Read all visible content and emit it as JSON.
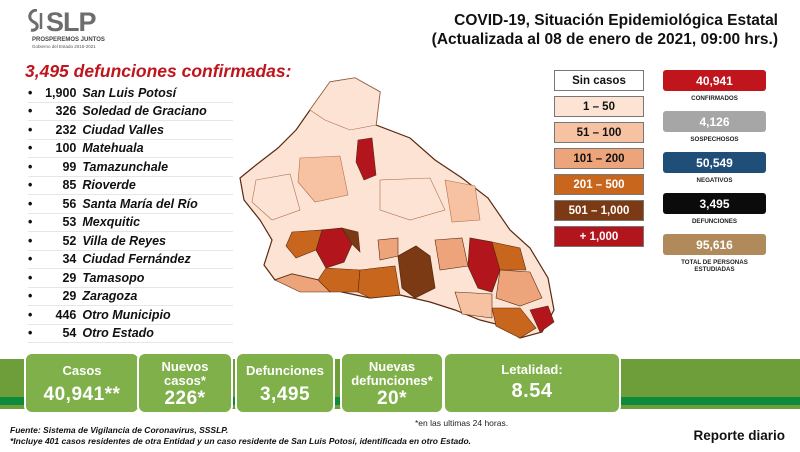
{
  "logo": {
    "name": "SLP",
    "motto": "PROSPEREMOS JUNTOS",
    "government": "Gobierno del Estado 2015-2021"
  },
  "title": {
    "line1": "COVID-19, Situación Epidemiológica Estatal",
    "line2": "(Actualizada al 08 de enero de 2021, 09:00 hrs.)"
  },
  "deaths": {
    "title": "3,495 defunciones confirmadas:",
    "items": [
      {
        "count": "1,900",
        "municipality": "San Luis Potosí"
      },
      {
        "count": "326",
        "municipality": "Soledad de Graciano"
      },
      {
        "count": "232",
        "municipality": "Ciudad Valles"
      },
      {
        "count": "100",
        "municipality": "Matehuala"
      },
      {
        "count": "99",
        "municipality": "Tamazunchale"
      },
      {
        "count": "85",
        "municipality": "Rioverde"
      },
      {
        "count": "56",
        "municipality": "Santa María del Río"
      },
      {
        "count": "53",
        "municipality": "Mexquitic"
      },
      {
        "count": "52",
        "municipality": "Villa de Reyes"
      },
      {
        "count": "34",
        "municipality": "Ciudad Fernández"
      },
      {
        "count": "29",
        "municipality": "Tamasopo"
      },
      {
        "count": "29",
        "municipality": "Zaragoza"
      },
      {
        "count": "446",
        "municipality": "Otro Municipio"
      },
      {
        "count": "54",
        "municipality": "Otro Estado"
      }
    ]
  },
  "legend": [
    {
      "label": "Sin casos",
      "color": "#ffffff",
      "text_color": "#111111"
    },
    {
      "label": "1 – 50",
      "color": "#fde3d3",
      "text_color": "#111111"
    },
    {
      "label": "51 – 100",
      "color": "#f7c2a2",
      "text_color": "#111111"
    },
    {
      "label": "101 – 200",
      "color": "#eda47a",
      "text_color": "#111111"
    },
    {
      "label": "201 – 500",
      "color": "#c9661d",
      "text_color": "#ffffff"
    },
    {
      "label": "501 – 1,000",
      "color": "#7b3a14",
      "text_color": "#ffffff"
    },
    {
      "label": "+ 1,000",
      "color": "#b3151d",
      "text_color": "#ffffff"
    }
  ],
  "indicators": [
    {
      "value": "40,941",
      "label": "CONFIRMADOS",
      "color": "#c0151c"
    },
    {
      "value": "4,126",
      "label": "SOSPECHOSOS",
      "color": "#a6a6a6"
    },
    {
      "value": "50,549",
      "label": "NEGATIVOS",
      "color": "#1f4e79"
    },
    {
      "value": "3,495",
      "label": "DEFUNCIONES",
      "color": "#0b0b0b"
    },
    {
      "value": "95,616",
      "label": "TOTAL DE PERSONAS ESTUDIADAS",
      "color": "#b08a5a"
    }
  ],
  "summary": {
    "casos": {
      "label": "Casos",
      "value": "40,941**"
    },
    "nuevos_casos": {
      "label": "Nuevos casos*",
      "value": "226*"
    },
    "defunciones": {
      "label": "Defunciones",
      "value": "3,495"
    },
    "nuevas_defunciones": {
      "label": "Nuevas defunciones*",
      "value": "20*"
    },
    "letalidad": {
      "label": "Letalidad:",
      "value": "8.54"
    }
  },
  "footnotes": {
    "last24": "*en las ultimas 24 horas.",
    "source": "Fuente: Sistema de Vigilancia de Coronavirus, SSSLP.",
    "note": "*Incluye 401 casos residentes de otra Entidad y un caso residente de San Luis Potosí, identificada en otro Estado.",
    "report": "Reporte diario"
  }
}
